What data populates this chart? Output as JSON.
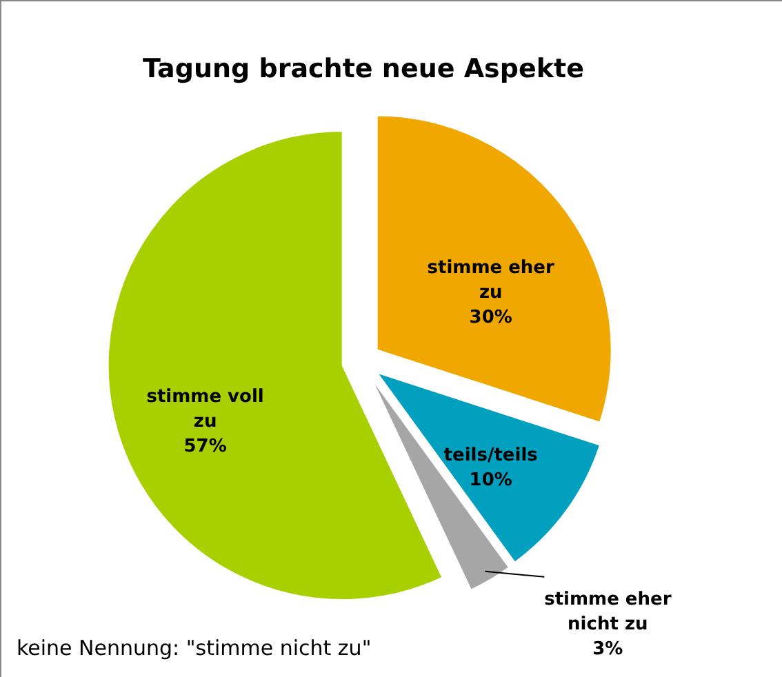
{
  "chart_data": {
    "type": "pie",
    "title": "Tagung brachte neue Aspekte",
    "categories": [
      "stimme eher zu",
      "teils/teils",
      "stimme eher nicht zu",
      "stimme voll zu"
    ],
    "values": [
      30,
      10,
      3,
      57
    ],
    "value_labels": [
      "30%",
      "10%",
      "3%",
      "57%"
    ],
    "colors": [
      "#f0a800",
      "#00a0be",
      "#a6a6a6",
      "#a8d000"
    ],
    "annotations": [
      "keine Nennung: \"stimme nicht zu\""
    ]
  }
}
